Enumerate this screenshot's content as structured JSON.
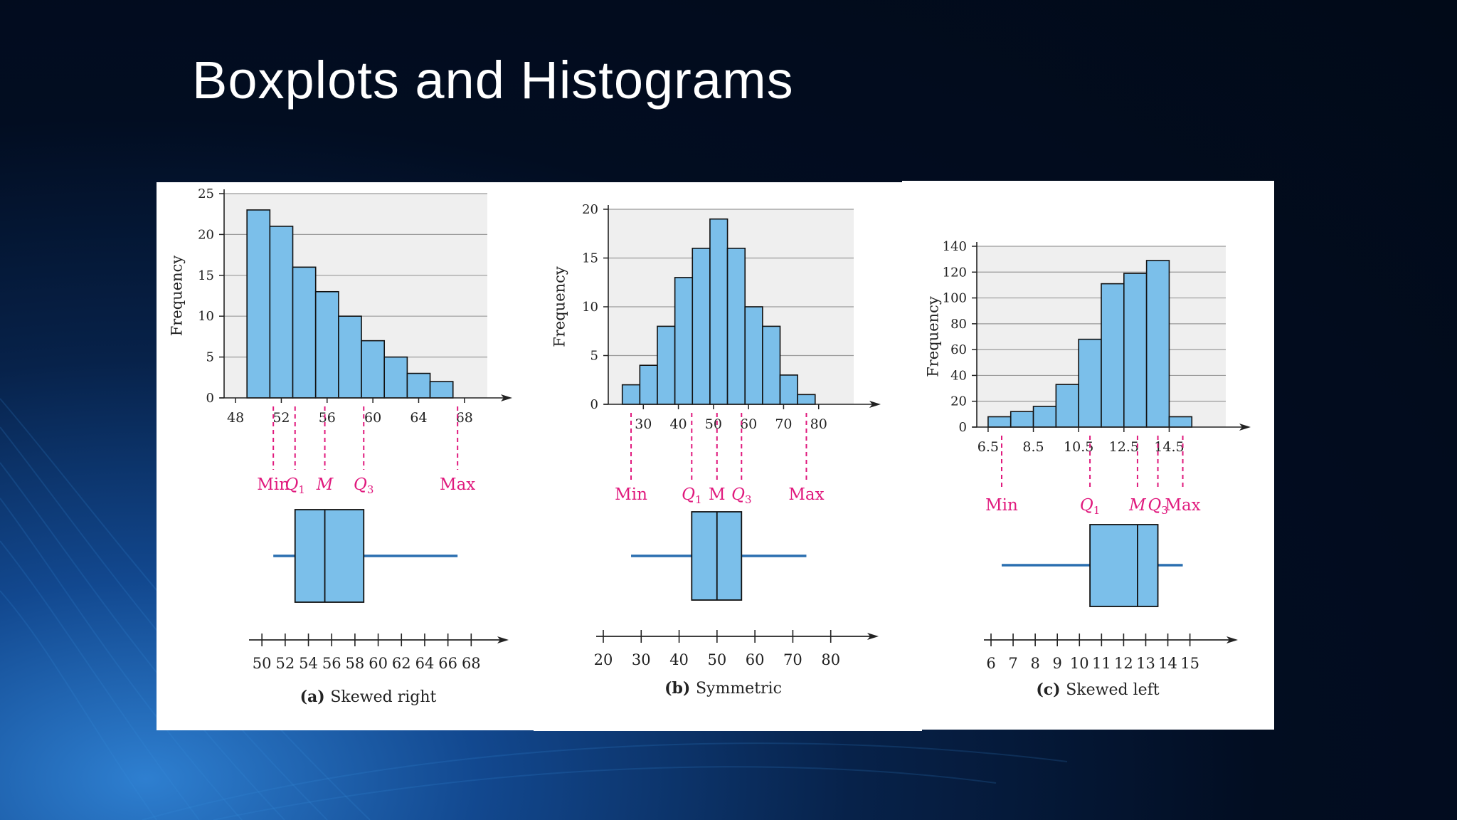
{
  "slide": {
    "title": "Boxplots and Histograms"
  },
  "colors": {
    "bar_fill": "#7bbfea",
    "box_fill": "#7bbfea",
    "whisker": "#2a6fb0",
    "marker": "#e0197d",
    "plot_bg": "#efefef"
  },
  "chart_data": [
    {
      "type": "bar",
      "caption_bold": "(a)",
      "caption": "Skewed right",
      "ylabel": "Frequency",
      "ylim": [
        0,
        25
      ],
      "yticks": [
        0,
        5,
        10,
        15,
        20,
        25
      ],
      "xlim": [
        47,
        70
      ],
      "xticks": [
        48,
        52,
        56,
        60,
        64,
        68
      ],
      "xtick_labels": [
        "48",
        "52",
        "56",
        "60",
        "64",
        "68"
      ],
      "bin_edges": [
        49,
        51,
        53,
        55,
        57,
        59,
        61,
        63,
        65,
        67
      ],
      "values": [
        23,
        21,
        16,
        13,
        10,
        7,
        5,
        3,
        2
      ],
      "markers": [
        {
          "label": "Min",
          "value": 51.3
        },
        {
          "label": "Q",
          "sub": "1",
          "italic": true,
          "value": 53.2
        },
        {
          "label": "M",
          "italic": true,
          "value": 55.8
        },
        {
          "label": "Q",
          "sub": "3",
          "italic": true,
          "value": 59.2
        },
        {
          "label": "Max",
          "value": 67.4
        }
      ],
      "boxplot": {
        "min": 51.3,
        "q1": 53.2,
        "median": 55.8,
        "q3": 59.2,
        "max": 67.4
      },
      "box_axis": {
        "xlim": [
          49.5,
          70
        ],
        "ticks": [
          50,
          52,
          54,
          56,
          58,
          60,
          62,
          64,
          66,
          68
        ],
        "tick_labels": [
          "50",
          "52",
          "54",
          "56",
          "58",
          "60",
          "62",
          "64",
          "66",
          "68"
        ]
      }
    },
    {
      "type": "bar",
      "caption_bold": "(b)",
      "caption": "Symmetric",
      "ylabel": "Frequency",
      "ylim": [
        0,
        20
      ],
      "yticks": [
        0,
        5,
        10,
        15,
        20
      ],
      "xlim": [
        20,
        90
      ],
      "xticks": [
        30,
        40,
        50,
        60,
        70,
        80
      ],
      "xtick_labels": [
        "30",
        "40",
        "50",
        "60",
        "70",
        "80"
      ],
      "bin_edges": [
        24,
        29,
        34,
        39,
        44,
        49,
        54,
        59,
        64,
        69,
        74,
        79
      ],
      "values": [
        2,
        4,
        8,
        13,
        16,
        19,
        16,
        10,
        8,
        3,
        1
      ],
      "markers": [
        {
          "label": "Min",
          "value": 26.5
        },
        {
          "label": "Q",
          "sub": "1",
          "italic": true,
          "value": 43.8
        },
        {
          "label": "M",
          "italic": false,
          "value": 51
        },
        {
          "label": "Q",
          "sub": "3",
          "italic": true,
          "value": 58
        },
        {
          "label": "Max",
          "value": 76.5
        }
      ],
      "boxplot": {
        "min": 26.5,
        "q1": 43.8,
        "median": 51,
        "q3": 58,
        "max": 76.5
      },
      "box_axis": {
        "xlim": [
          20,
          87
        ],
        "ticks": [
          20,
          30,
          40,
          50,
          60,
          70,
          80
        ],
        "tick_labels": [
          "20",
          "30",
          "40",
          "50",
          "60",
          "70",
          "80"
        ]
      }
    },
    {
      "type": "bar",
      "caption_bold": "(c)",
      "caption": "Skewed left",
      "ylabel": "Frequency",
      "ylim": [
        0,
        140
      ],
      "yticks": [
        0,
        20,
        40,
        60,
        80,
        100,
        120,
        140
      ],
      "xlim": [
        6,
        17
      ],
      "xticks": [
        6.5,
        8.5,
        10.5,
        12.5,
        14.5
      ],
      "xtick_labels": [
        "6.5",
        "8.5",
        "10.5",
        "12.5",
        "14.5"
      ],
      "bin_edges": [
        6.5,
        7.5,
        8.5,
        9.5,
        10.5,
        11.5,
        12.5,
        13.5,
        14.5,
        15.5
      ],
      "values": [
        8,
        12,
        16,
        33,
        68,
        111,
        119,
        129,
        8
      ],
      "markers": [
        {
          "label": "Min",
          "value": 7.1
        },
        {
          "label": "Q",
          "sub": "1",
          "italic": true,
          "value": 11
        },
        {
          "label": "M",
          "italic": true,
          "value": 13.1
        },
        {
          "label": "Q",
          "sub": "3",
          "italic": true,
          "value": 14
        },
        {
          "label": "Max",
          "value": 15.1
        }
      ],
      "boxplot": {
        "min": 7.1,
        "q1": 11,
        "median": 13.1,
        "q3": 14,
        "max": 15.1
      },
      "box_axis": {
        "xlim": [
          6,
          16.3
        ],
        "ticks": [
          6,
          7,
          8,
          9,
          10,
          11,
          12,
          13,
          14,
          15
        ],
        "tick_labels": [
          "6",
          "7",
          "8",
          "9",
          "10",
          "11",
          "12",
          "13",
          "14",
          "15"
        ]
      }
    }
  ]
}
